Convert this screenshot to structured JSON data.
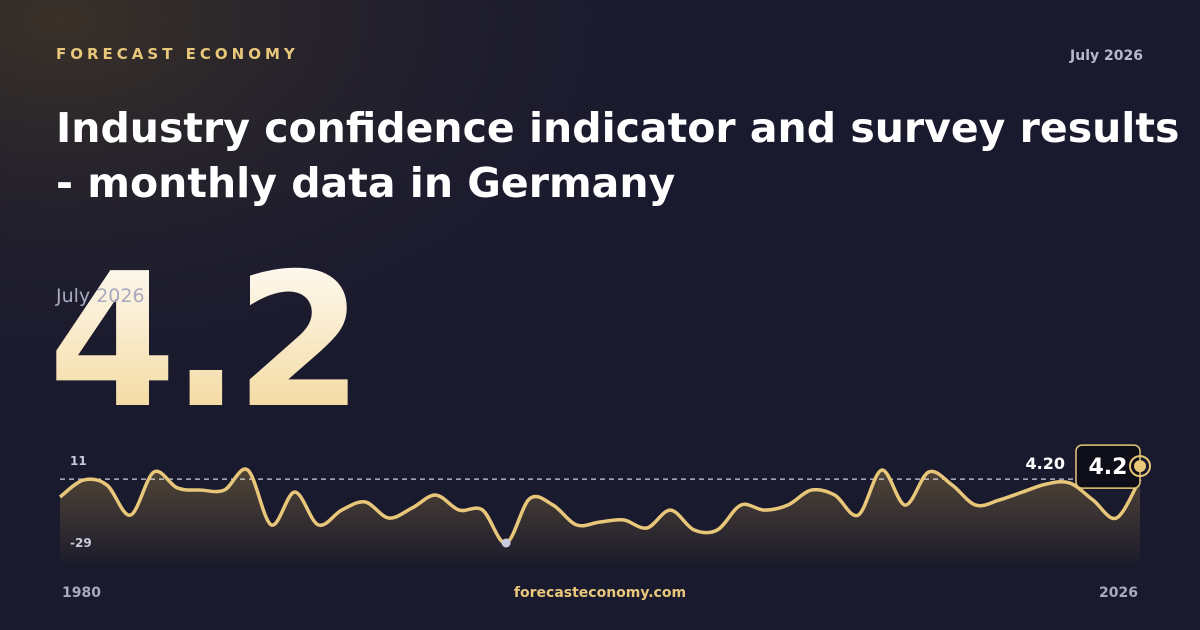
{
  "header": {
    "brand": "FORECAST ECONOMY",
    "date": "July 2026"
  },
  "chart_data": {
    "type": "line",
    "title": "Industry confidence indicator and survey results",
    "subtitle": "- monthly data in Germany",
    "latest_label": "July 2026",
    "x": [
      1980,
      1981,
      1982,
      1983,
      1984,
      1985,
      1986,
      1987,
      1988,
      1989,
      1990,
      1991,
      1992,
      1993,
      1994,
      1995,
      1996,
      1997,
      1998,
      1999,
      2000,
      2001,
      2002,
      2003,
      2004,
      2005,
      2006,
      2007,
      2008,
      2009,
      2010,
      2011,
      2012,
      2013,
      2014,
      2015,
      2016,
      2017,
      2018,
      2019,
      2020,
      2021,
      2022,
      2023,
      2024,
      2025,
      2026
    ],
    "series": [
      {
        "name": "Industry confidence",
        "color": "#e8c77a",
        "values": [
          -5.1,
          3.7,
          1.1,
          -14.5,
          7.9,
          -0.4,
          -1.5,
          -1.5,
          8.9,
          -19.6,
          -2.5,
          -19.6,
          -11.9,
          -7.7,
          -16,
          -10.8,
          -4.1,
          -11.9,
          -11.9,
          -29,
          -6,
          -9.3,
          -19.6,
          -18.1,
          -17,
          -21.2,
          -11.9,
          -22.2,
          -22.2,
          -9.3,
          -11.9,
          -9.3,
          -1.5,
          -4.1,
          -14.5,
          8.9,
          -9.3,
          7.9,
          1.1,
          -9.3,
          -6.7,
          -2.5,
          1.6,
          2.2,
          -6.7,
          -16,
          4.2
        ]
      }
    ],
    "xlim": [
      1980,
      2026
    ],
    "xticks": [
      1980,
      2026
    ],
    "ylim": [
      -29,
      11
    ],
    "yticks": [
      -29,
      11
    ],
    "reference_line": {
      "value": 4.2,
      "label": "4.20"
    }
  },
  "footer": {
    "site": "forecasteconomy.com"
  }
}
